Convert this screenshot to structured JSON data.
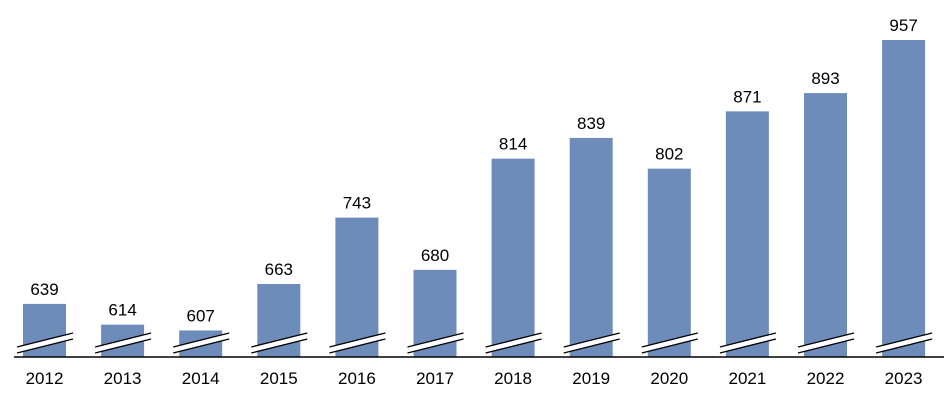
{
  "chart_data": {
    "type": "bar",
    "title": "",
    "xlabel": "",
    "ylabel": "",
    "categories": [
      "2012",
      "2013",
      "2014",
      "2015",
      "2016",
      "2017",
      "2018",
      "2019",
      "2020",
      "2021",
      "2022",
      "2023"
    ],
    "values": [
      639,
      614,
      607,
      663,
      743,
      680,
      814,
      839,
      802,
      871,
      893,
      957
    ],
    "ylim": [
      575,
      960
    ],
    "axis_break": true,
    "grid": false,
    "data_labels": true,
    "bar_color": "#6E8CBA"
  }
}
